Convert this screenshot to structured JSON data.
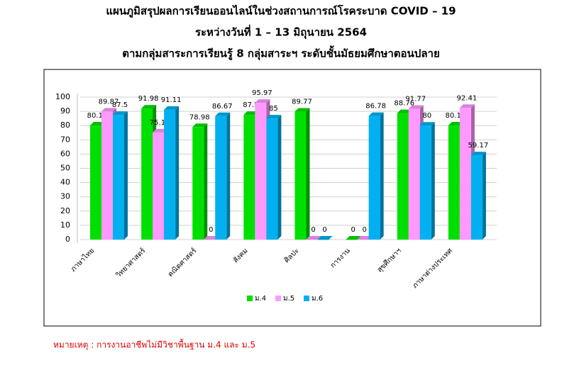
{
  "chart_data": {
    "type": "bar3d",
    "title": "แผนภูมิสรุปผลการเรียนออนไลน์ในช่วงสถานการณ์โรคระบาด COVID – 19",
    "subtitle": "ระหว่างวันที่ 1 – 13 มิถุนายน  2564",
    "subtitle2": "ตามกลุ่มสาระการเรียนรู้ 8 กลุ่มสาระฯ  ระดับชั้นมัธยมศึกษาตอนปลาย",
    "categories": [
      "ภาษาไทย",
      "วิทยาศาสตร์",
      "คณิตศาสตร์",
      "สังคม",
      "ศิลปะ",
      "การงาน",
      "สุขศึกษาฯ",
      "ภาษาต่างประเทศ"
    ],
    "series": [
      {
        "name": "ม.4",
        "color": "#00e000",
        "values": [
          80.11,
          91.98,
          78.98,
          87.5,
          89.77,
          0,
          88.76,
          80.11
        ]
      },
      {
        "name": "ม.5",
        "color": "#ff99ff",
        "values": [
          89.87,
          75.17,
          0,
          95.97,
          0,
          0,
          91.77,
          92.41
        ]
      },
      {
        "name": "ม.6",
        "color": "#00b0f0",
        "values": [
          87.5,
          91.11,
          86.67,
          85,
          0,
          86.78,
          80,
          59.17
        ]
      }
    ],
    "ylim": [
      0,
      100
    ],
    "yticks": [
      0,
      10,
      20,
      30,
      40,
      50,
      60,
      70,
      80,
      90,
      100
    ],
    "grid": true,
    "legend": "bottom",
    "note": "หมายเหตุ : การงานอาชีพไม่มีวิชาพื้นฐาน ม.4 และ ม.5"
  }
}
